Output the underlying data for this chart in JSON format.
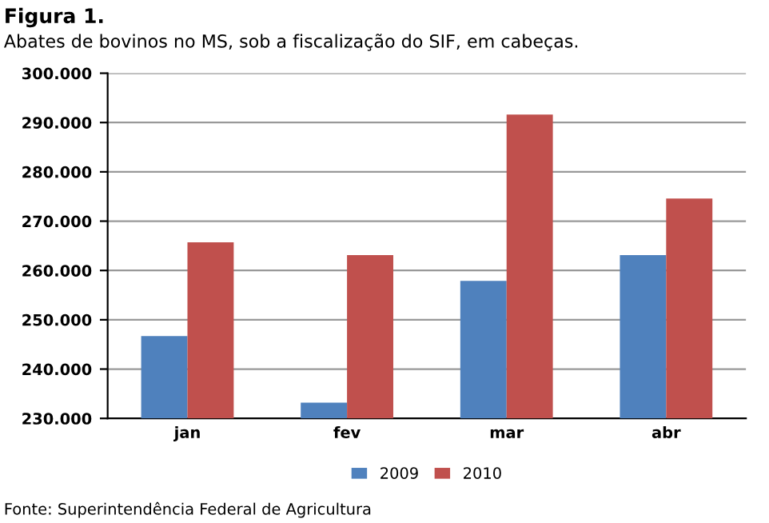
{
  "chart_data": {
    "type": "bar",
    "title": "Figura 1.",
    "subtitle": "Abates de bovinos no MS, sob a fiscalização do SIF, em cabeças.",
    "categories": [
      "jan",
      "fev",
      "mar",
      "abr"
    ],
    "series": [
      {
        "name": "2009",
        "color": "#4f81bd",
        "values": [
          246700,
          233200,
          257900,
          263100
        ]
      },
      {
        "name": "2010",
        "color": "#c0504d",
        "values": [
          265700,
          263100,
          291600,
          274600
        ]
      }
    ],
    "ylim": [
      230000,
      300000
    ],
    "yticks": [
      {
        "value": 230000,
        "label": "230.000"
      },
      {
        "value": 240000,
        "label": "240.000"
      },
      {
        "value": 250000,
        "label": "250.000"
      },
      {
        "value": 260000,
        "label": "260.000"
      },
      {
        "value": 270000,
        "label": "270.000"
      },
      {
        "value": 280000,
        "label": "280.000"
      },
      {
        "value": 290000,
        "label": "290.000"
      },
      {
        "value": 300000,
        "label": "300.000"
      }
    ],
    "grid": "y",
    "legend": "bottom",
    "annotations": [
      "Fonte: Superintendência Federal de Agricultura"
    ]
  }
}
